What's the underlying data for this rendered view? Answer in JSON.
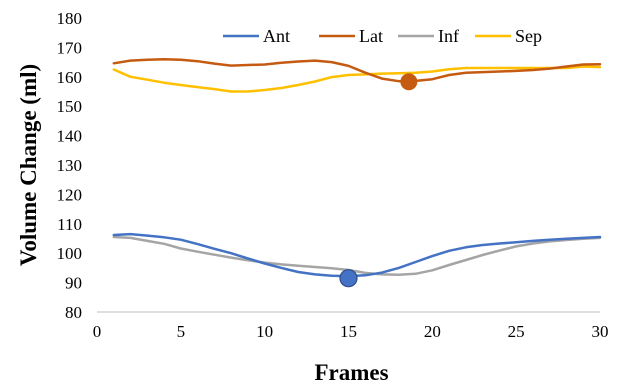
{
  "chart_data": {
    "type": "line",
    "xlabel": "Frames",
    "ylabel": "Volume Change (ml)",
    "xlim": [
      0,
      30
    ],
    "ylim": [
      80,
      180
    ],
    "xticks": [
      0,
      5,
      10,
      15,
      20,
      25,
      30
    ],
    "yticks": [
      80,
      90,
      100,
      110,
      120,
      130,
      140,
      150,
      160,
      170,
      180
    ],
    "grid": false,
    "legend_position": "top",
    "x": [
      1,
      2,
      3,
      4,
      5,
      6,
      7,
      8,
      9,
      10,
      11,
      12,
      13,
      14,
      15,
      16,
      17,
      18,
      19,
      20,
      21,
      22,
      23,
      24,
      25,
      26,
      27,
      28,
      29,
      30
    ],
    "series": [
      {
        "name": "Ant",
        "color": "#4472C4",
        "values": [
          106.2,
          106.5,
          106,
          105.4,
          104.6,
          103.1,
          101.5,
          100,
          98.2,
          96.5,
          95,
          93.6,
          92.8,
          92.3,
          92.2,
          92.5,
          93.4,
          95,
          97,
          99,
          100.8,
          102,
          102.8,
          103.3,
          103.7,
          104.2,
          104.6,
          104.9,
          105.2,
          105.5
        ],
        "marker": {
          "x": 15,
          "y": 91.5,
          "color": "#4472C4"
        }
      },
      {
        "name": "Lat",
        "color": "#C55A11",
        "values": [
          164.6,
          165.5,
          165.8,
          166,
          165.8,
          165.3,
          164.5,
          163.8,
          164,
          164.2,
          164.8,
          165.2,
          165.5,
          165,
          163.7,
          161.4,
          159.4,
          158.5,
          158.6,
          159.2,
          160.6,
          161.4,
          161.6,
          161.8,
          162,
          162.3,
          162.8,
          163.5,
          164.2,
          164.3
        ],
        "marker": {
          "x": 18.6,
          "y": 158.3,
          "color": "#C55A11"
        }
      },
      {
        "name": "Inf",
        "color": "#A5A5A5",
        "values": [
          105.5,
          105.2,
          104.2,
          103.2,
          101.6,
          100.5,
          99.5,
          98.5,
          97.6,
          96.8,
          96.2,
          95.7,
          95.3,
          94.9,
          94.3,
          93.3,
          92.8,
          92.7,
          93,
          94.2,
          96,
          97.7,
          99.4,
          100.9,
          102.3,
          103.3,
          104,
          104.5,
          104.9,
          105.2
        ]
      },
      {
        "name": "Sep",
        "color": "#FFC000",
        "values": [
          162.5,
          160,
          159,
          158,
          157.2,
          156.5,
          155.8,
          155,
          155,
          155.5,
          156.2,
          157.2,
          158.4,
          159.9,
          160.6,
          160.8,
          161.1,
          161.2,
          161.4,
          161.8,
          162.6,
          163,
          163,
          163,
          163,
          163,
          163,
          163,
          163.5,
          163.3
        ]
      }
    ]
  }
}
